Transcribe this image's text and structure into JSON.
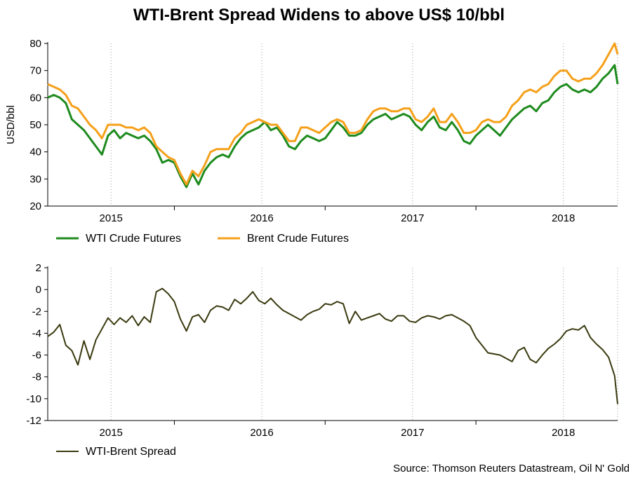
{
  "title": "WTI-Brent Spread Widens to above US$ 10/bbl",
  "source": "Source: Thomson Reuters Datastream, Oil N' Gold",
  "colors": {
    "wti": "#1e8b1e",
    "brent": "#f5a01a",
    "spread": "#3a3a10",
    "grid": "#999999"
  },
  "chart_data": [
    {
      "type": "line",
      "ylabel": "USD/bbl",
      "xlim": [
        2014.58,
        2018.36
      ],
      "ylim": [
        20,
        80
      ],
      "yticks": [
        20,
        30,
        40,
        50,
        60,
        70,
        80
      ],
      "xtick_labels": [
        {
          "label": "2015",
          "x": 2015.0
        },
        {
          "label": "2016",
          "x": 2016.0
        },
        {
          "label": "2017",
          "x": 2017.0
        },
        {
          "label": "2018",
          "x": 2018.0
        }
      ],
      "year_boundaries": [
        2015.42,
        2016.42,
        2017.42
      ],
      "grid": "vertical dotted at year mid-points",
      "legend": "bottom",
      "series": [
        {
          "name": "WTI Crude Futures",
          "x": [
            2014.58,
            2014.62,
            2014.66,
            2014.7,
            2014.74,
            2014.78,
            2014.82,
            2014.86,
            2014.9,
            2014.94,
            2014.98,
            2015.02,
            2015.06,
            2015.1,
            2015.14,
            2015.18,
            2015.22,
            2015.26,
            2015.3,
            2015.34,
            2015.38,
            2015.42,
            2015.46,
            2015.5,
            2015.54,
            2015.58,
            2015.62,
            2015.66,
            2015.7,
            2015.74,
            2015.78,
            2015.82,
            2015.86,
            2015.9,
            2015.94,
            2015.98,
            2016.02,
            2016.06,
            2016.1,
            2016.14,
            2016.18,
            2016.22,
            2016.26,
            2016.3,
            2016.34,
            2016.38,
            2016.42,
            2016.46,
            2016.5,
            2016.54,
            2016.58,
            2016.62,
            2016.66,
            2016.7,
            2016.74,
            2016.78,
            2016.82,
            2016.86,
            2016.9,
            2016.94,
            2016.98,
            2017.02,
            2017.06,
            2017.1,
            2017.14,
            2017.18,
            2017.22,
            2017.26,
            2017.3,
            2017.34,
            2017.38,
            2017.42,
            2017.46,
            2017.5,
            2017.54,
            2017.58,
            2017.62,
            2017.66,
            2017.7,
            2017.74,
            2017.78,
            2017.82,
            2017.86,
            2017.9,
            2017.94,
            2017.98,
            2018.02,
            2018.06,
            2018.1,
            2018.14,
            2018.18,
            2018.22,
            2018.26,
            2018.3,
            2018.34,
            2018.36
          ],
          "values": [
            60,
            61,
            60,
            58,
            52,
            50,
            48,
            45,
            42,
            39,
            46,
            48,
            45,
            47,
            46,
            45,
            46,
            44,
            41,
            36,
            37,
            36,
            31,
            27,
            32,
            28,
            33,
            36,
            38,
            39,
            38,
            42,
            45,
            47,
            48,
            49,
            51,
            48,
            49,
            46,
            42,
            41,
            44,
            46,
            45,
            44,
            45,
            48,
            51,
            49,
            46,
            46,
            47,
            50,
            52,
            53,
            54,
            52,
            53,
            54,
            53,
            50,
            48,
            51,
            53,
            49,
            48,
            51,
            48,
            44,
            43,
            46,
            48,
            50,
            48,
            46,
            49,
            52,
            54,
            56,
            57,
            55,
            58,
            59,
            62,
            64,
            65,
            63,
            62,
            63,
            62,
            64,
            67,
            69,
            72,
            65
          ]
        },
        {
          "name": "Brent Crude Futures",
          "x": [
            2014.58,
            2014.62,
            2014.66,
            2014.7,
            2014.74,
            2014.78,
            2014.82,
            2014.86,
            2014.9,
            2014.94,
            2014.98,
            2015.02,
            2015.06,
            2015.1,
            2015.14,
            2015.18,
            2015.22,
            2015.26,
            2015.3,
            2015.34,
            2015.38,
            2015.42,
            2015.46,
            2015.5,
            2015.54,
            2015.58,
            2015.62,
            2015.66,
            2015.7,
            2015.74,
            2015.78,
            2015.82,
            2015.86,
            2015.9,
            2015.94,
            2015.98,
            2016.02,
            2016.06,
            2016.1,
            2016.14,
            2016.18,
            2016.22,
            2016.26,
            2016.3,
            2016.34,
            2016.38,
            2016.42,
            2016.46,
            2016.5,
            2016.54,
            2016.58,
            2016.62,
            2016.66,
            2016.7,
            2016.74,
            2016.78,
            2016.82,
            2016.86,
            2016.9,
            2016.94,
            2016.98,
            2017.02,
            2017.06,
            2017.1,
            2017.14,
            2017.18,
            2017.22,
            2017.26,
            2017.3,
            2017.34,
            2017.38,
            2017.42,
            2017.46,
            2017.5,
            2017.54,
            2017.58,
            2017.62,
            2017.66,
            2017.7,
            2017.74,
            2017.78,
            2017.82,
            2017.86,
            2017.9,
            2017.94,
            2017.98,
            2018.02,
            2018.06,
            2018.1,
            2018.14,
            2018.18,
            2018.22,
            2018.26,
            2018.3,
            2018.34,
            2018.36
          ],
          "values": [
            65,
            64,
            63,
            61,
            57,
            56,
            53,
            50,
            48,
            45,
            50,
            50,
            50,
            49,
            49,
            48,
            49,
            47,
            42,
            40,
            38,
            37,
            32,
            28,
            33,
            31,
            35,
            40,
            41,
            41,
            41,
            45,
            47,
            50,
            51,
            52,
            51,
            50,
            50,
            47,
            44,
            44,
            49,
            49,
            48,
            47,
            49,
            51,
            52,
            51,
            47,
            47,
            48,
            52,
            55,
            56,
            56,
            55,
            55,
            56,
            56,
            52,
            51,
            53,
            56,
            51,
            51,
            54,
            51,
            47,
            47,
            48,
            51,
            52,
            51,
            51,
            53,
            57,
            59,
            62,
            63,
            62,
            64,
            65,
            68,
            70,
            70,
            67,
            66,
            67,
            67,
            69,
            72,
            76,
            80,
            76
          ]
        }
      ]
    },
    {
      "type": "line",
      "xlim": [
        2014.58,
        2018.36
      ],
      "ylim": [
        -12,
        2
      ],
      "yticks": [
        -12,
        -10,
        -8,
        -6,
        -4,
        -2,
        0,
        2
      ],
      "xtick_labels": [
        {
          "label": "2015",
          "x": 2015.0
        },
        {
          "label": "2016",
          "x": 2016.0
        },
        {
          "label": "2017",
          "x": 2017.0
        },
        {
          "label": "2018",
          "x": 2018.0
        }
      ],
      "year_boundaries": [
        2015.42,
        2016.42,
        2017.42
      ],
      "legend": "bottom",
      "series": [
        {
          "name": "WTI-Brent Spread",
          "x": [
            2014.58,
            2014.62,
            2014.66,
            2014.7,
            2014.74,
            2014.78,
            2014.82,
            2014.86,
            2014.9,
            2014.94,
            2014.98,
            2015.02,
            2015.06,
            2015.1,
            2015.14,
            2015.18,
            2015.22,
            2015.26,
            2015.3,
            2015.34,
            2015.38,
            2015.42,
            2015.46,
            2015.5,
            2015.54,
            2015.58,
            2015.62,
            2015.66,
            2015.7,
            2015.74,
            2015.78,
            2015.82,
            2015.86,
            2015.9,
            2015.94,
            2015.98,
            2016.02,
            2016.06,
            2016.1,
            2016.14,
            2016.18,
            2016.22,
            2016.26,
            2016.3,
            2016.34,
            2016.38,
            2016.42,
            2016.46,
            2016.5,
            2016.54,
            2016.58,
            2016.62,
            2016.66,
            2016.7,
            2016.74,
            2016.78,
            2016.82,
            2016.86,
            2016.9,
            2016.94,
            2016.98,
            2017.02,
            2017.06,
            2017.1,
            2017.14,
            2017.18,
            2017.22,
            2017.26,
            2017.3,
            2017.34,
            2017.38,
            2017.42,
            2017.46,
            2017.5,
            2017.54,
            2017.58,
            2017.62,
            2017.66,
            2017.7,
            2017.74,
            2017.78,
            2017.82,
            2017.86,
            2017.9,
            2017.94,
            2017.98,
            2018.02,
            2018.06,
            2018.1,
            2018.14,
            2018.18,
            2018.22,
            2018.26,
            2018.3,
            2018.34,
            2018.36
          ],
          "values": [
            -4.3,
            -3.9,
            -3.2,
            -5.1,
            -5.6,
            -6.9,
            -4.7,
            -6.4,
            -4.6,
            -3.6,
            -2.6,
            -3.2,
            -2.6,
            -3.0,
            -2.4,
            -3.3,
            -2.5,
            -3.0,
            -0.2,
            0.1,
            -0.4,
            -1.1,
            -2.7,
            -3.8,
            -2.5,
            -2.3,
            -3.0,
            -1.9,
            -1.5,
            -1.6,
            -1.9,
            -0.9,
            -1.3,
            -0.8,
            -0.2,
            -1.0,
            -1.3,
            -0.8,
            -1.4,
            -1.9,
            -2.2,
            -2.5,
            -2.8,
            -2.3,
            -2.0,
            -1.8,
            -1.3,
            -1.4,
            -1.1,
            -1.3,
            -3.1,
            -2.0,
            -2.8,
            -2.6,
            -2.4,
            -2.2,
            -2.7,
            -2.9,
            -2.4,
            -2.4,
            -2.9,
            -3.0,
            -2.6,
            -2.4,
            -2.5,
            -2.7,
            -2.4,
            -2.3,
            -2.6,
            -2.9,
            -3.3,
            -4.4,
            -5.1,
            -5.8,
            -5.9,
            -6.0,
            -6.3,
            -6.6,
            -5.6,
            -5.3,
            -6.4,
            -6.7,
            -6.0,
            -5.4,
            -5.0,
            -4.5,
            -3.8,
            -3.6,
            -3.7,
            -3.3,
            -4.4,
            -5.0,
            -5.5,
            -6.2,
            -7.9,
            -10.5
          ]
        }
      ]
    }
  ]
}
